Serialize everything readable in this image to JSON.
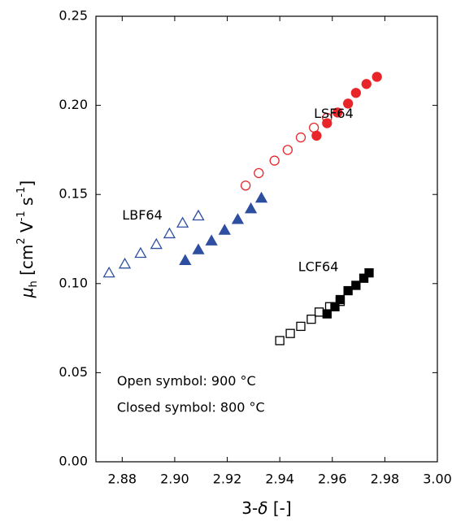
{
  "chart_data": {
    "type": "scatter",
    "x_label": {
      "parts": [
        "3-",
        "δ",
        " [-]"
      ],
      "styles": [
        "normal",
        "italic",
        "normal"
      ]
    },
    "y_label": {
      "parts": [
        "μ",
        "h",
        " [cm",
        "2",
        " V",
        "-1",
        " s",
        "-1",
        "]"
      ],
      "styles": [
        "italic",
        "sub",
        "normal",
        "super",
        "normal",
        "super",
        "normal",
        "super",
        "normal"
      ]
    },
    "xlim": [
      2.87,
      3.0
    ],
    "xticks": [
      2.88,
      {
        "value": 2.9,
        "label": "2.90"
      },
      2.92,
      2.94,
      2.96,
      2.98,
      {
        "value": 3.0,
        "label": "3.00"
      }
    ],
    "ylim": [
      0,
      0.25
    ],
    "yticks": [
      {
        "value": 0,
        "label": "0.00"
      },
      0.05,
      {
        "value": 0.1,
        "label": "0.10"
      },
      0.15,
      {
        "value": 0.2,
        "label": "0.20"
      },
      0.25
    ],
    "series": [
      {
        "marker": "triangle",
        "filled": false,
        "color": "#2e4fa0",
        "x": [
          2.875,
          2.881,
          2.887,
          2.893,
          2.898,
          2.903,
          2.909
        ],
        "values": [
          0.106,
          0.111,
          0.117,
          0.122,
          0.128,
          0.134,
          0.138
        ]
      },
      {
        "marker": "triangle",
        "filled": true,
        "color": "#2e4fa0",
        "x": [
          2.904,
          2.909,
          2.914,
          2.919,
          2.924,
          2.929,
          2.933
        ],
        "values": [
          0.113,
          0.119,
          0.124,
          0.13,
          0.136,
          0.142,
          0.148
        ]
      },
      {
        "marker": "circle",
        "filled": false,
        "color": "#e8262a",
        "x": [
          2.927,
          2.932,
          2.938,
          2.943,
          2.948,
          2.953,
          2.958
        ],
        "values": [
          0.155,
          0.162,
          0.169,
          0.175,
          0.182,
          0.1875,
          0.193
        ]
      },
      {
        "marker": "circle",
        "filled": true,
        "color": "#e8262a",
        "x": [
          2.954,
          2.958,
          2.962,
          2.966,
          2.969,
          2.973,
          2.977
        ],
        "values": [
          0.183,
          0.19,
          0.196,
          0.201,
          0.207,
          0.212,
          0.216
        ]
      },
      {
        "marker": "square",
        "filled": false,
        "color": "#000000",
        "x": [
          2.94,
          2.944,
          2.948,
          2.952,
          2.955,
          2.959,
          2.963
        ],
        "values": [
          0.068,
          0.072,
          0.076,
          0.08,
          0.084,
          0.087,
          0.09
        ]
      },
      {
        "marker": "square",
        "filled": true,
        "color": "#000000",
        "x": [
          2.958,
          2.961,
          2.963,
          2.966,
          2.969,
          2.972,
          2.974
        ],
        "values": [
          0.083,
          0.087,
          0.091,
          0.096,
          0.099,
          0.103,
          0.106
        ]
      }
    ],
    "annotations": [
      {
        "text": "LSF64",
        "color": "#e8262a",
        "x": 2.953,
        "y": 0.195
      },
      {
        "text": "LBF64",
        "color": "#2e4fa0",
        "x": 2.88,
        "y": 0.138
      },
      {
        "text": "LCF64",
        "color": "#000000",
        "x": 2.947,
        "y": 0.109
      },
      {
        "text": "Open symbol: 900 °C",
        "color": "#000000",
        "x": 2.878,
        "y": 0.045
      },
      {
        "text": "Closed symbol: 800 °C",
        "color": "#000000",
        "x": 2.878,
        "y": 0.03
      }
    ]
  }
}
